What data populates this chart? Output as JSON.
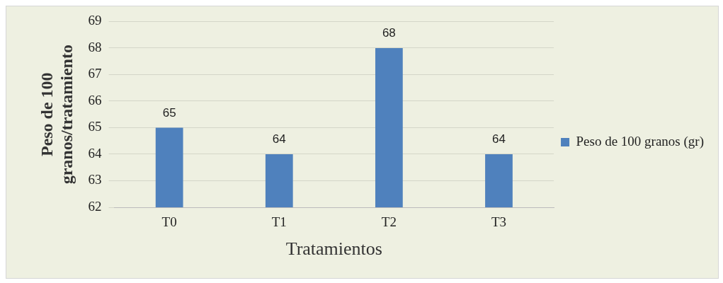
{
  "chart_data": {
    "type": "bar",
    "xlabel": "Tratamientos",
    "ylabel": "Peso de 100 granos/tratamiento",
    "categories": [
      "T0",
      "T1",
      "T2",
      "T3"
    ],
    "series": [
      {
        "name": "Peso de 100 granos (gr)",
        "color": "#4f81bd",
        "values": [
          65,
          64,
          68,
          64
        ]
      }
    ],
    "ylim": [
      62,
      69
    ],
    "yticks": [
      62,
      63,
      64,
      65,
      66,
      67,
      68,
      69
    ],
    "grid": "y",
    "legend": "right",
    "data_labels": true
  }
}
